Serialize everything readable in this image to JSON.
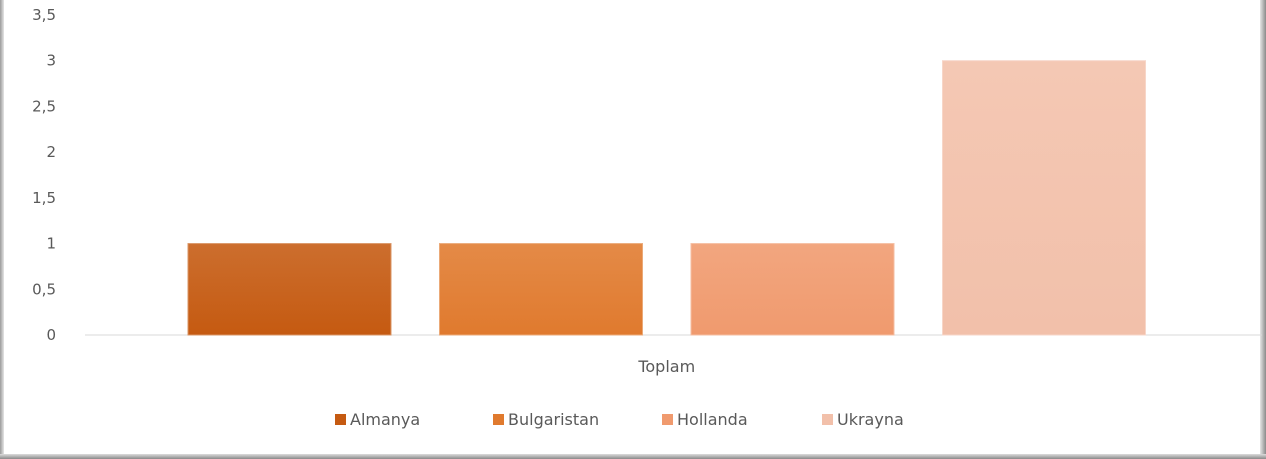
{
  "chart_data": {
    "type": "bar",
    "categories": [
      "Toplam"
    ],
    "series": [
      {
        "name": "Almanya",
        "values": [
          1
        ],
        "color": "#c55a11"
      },
      {
        "name": "Bulgaristan",
        "values": [
          1
        ],
        "color": "#e07a2e"
      },
      {
        "name": "Hollanda",
        "values": [
          1
        ],
        "color": "#f09a6e"
      },
      {
        "name": "Ukrayna",
        "values": [
          3
        ],
        "color": "#f2c0aa"
      }
    ],
    "ylim": [
      0,
      3.5
    ],
    "yticks": [
      "0",
      "0,5",
      "1",
      "1,5",
      "2",
      "2,5",
      "3",
      "3,5"
    ],
    "ytick_values": [
      0,
      0.5,
      1,
      1.5,
      2,
      2.5,
      3,
      3.5
    ],
    "grid": false,
    "legend_position": "bottom"
  }
}
